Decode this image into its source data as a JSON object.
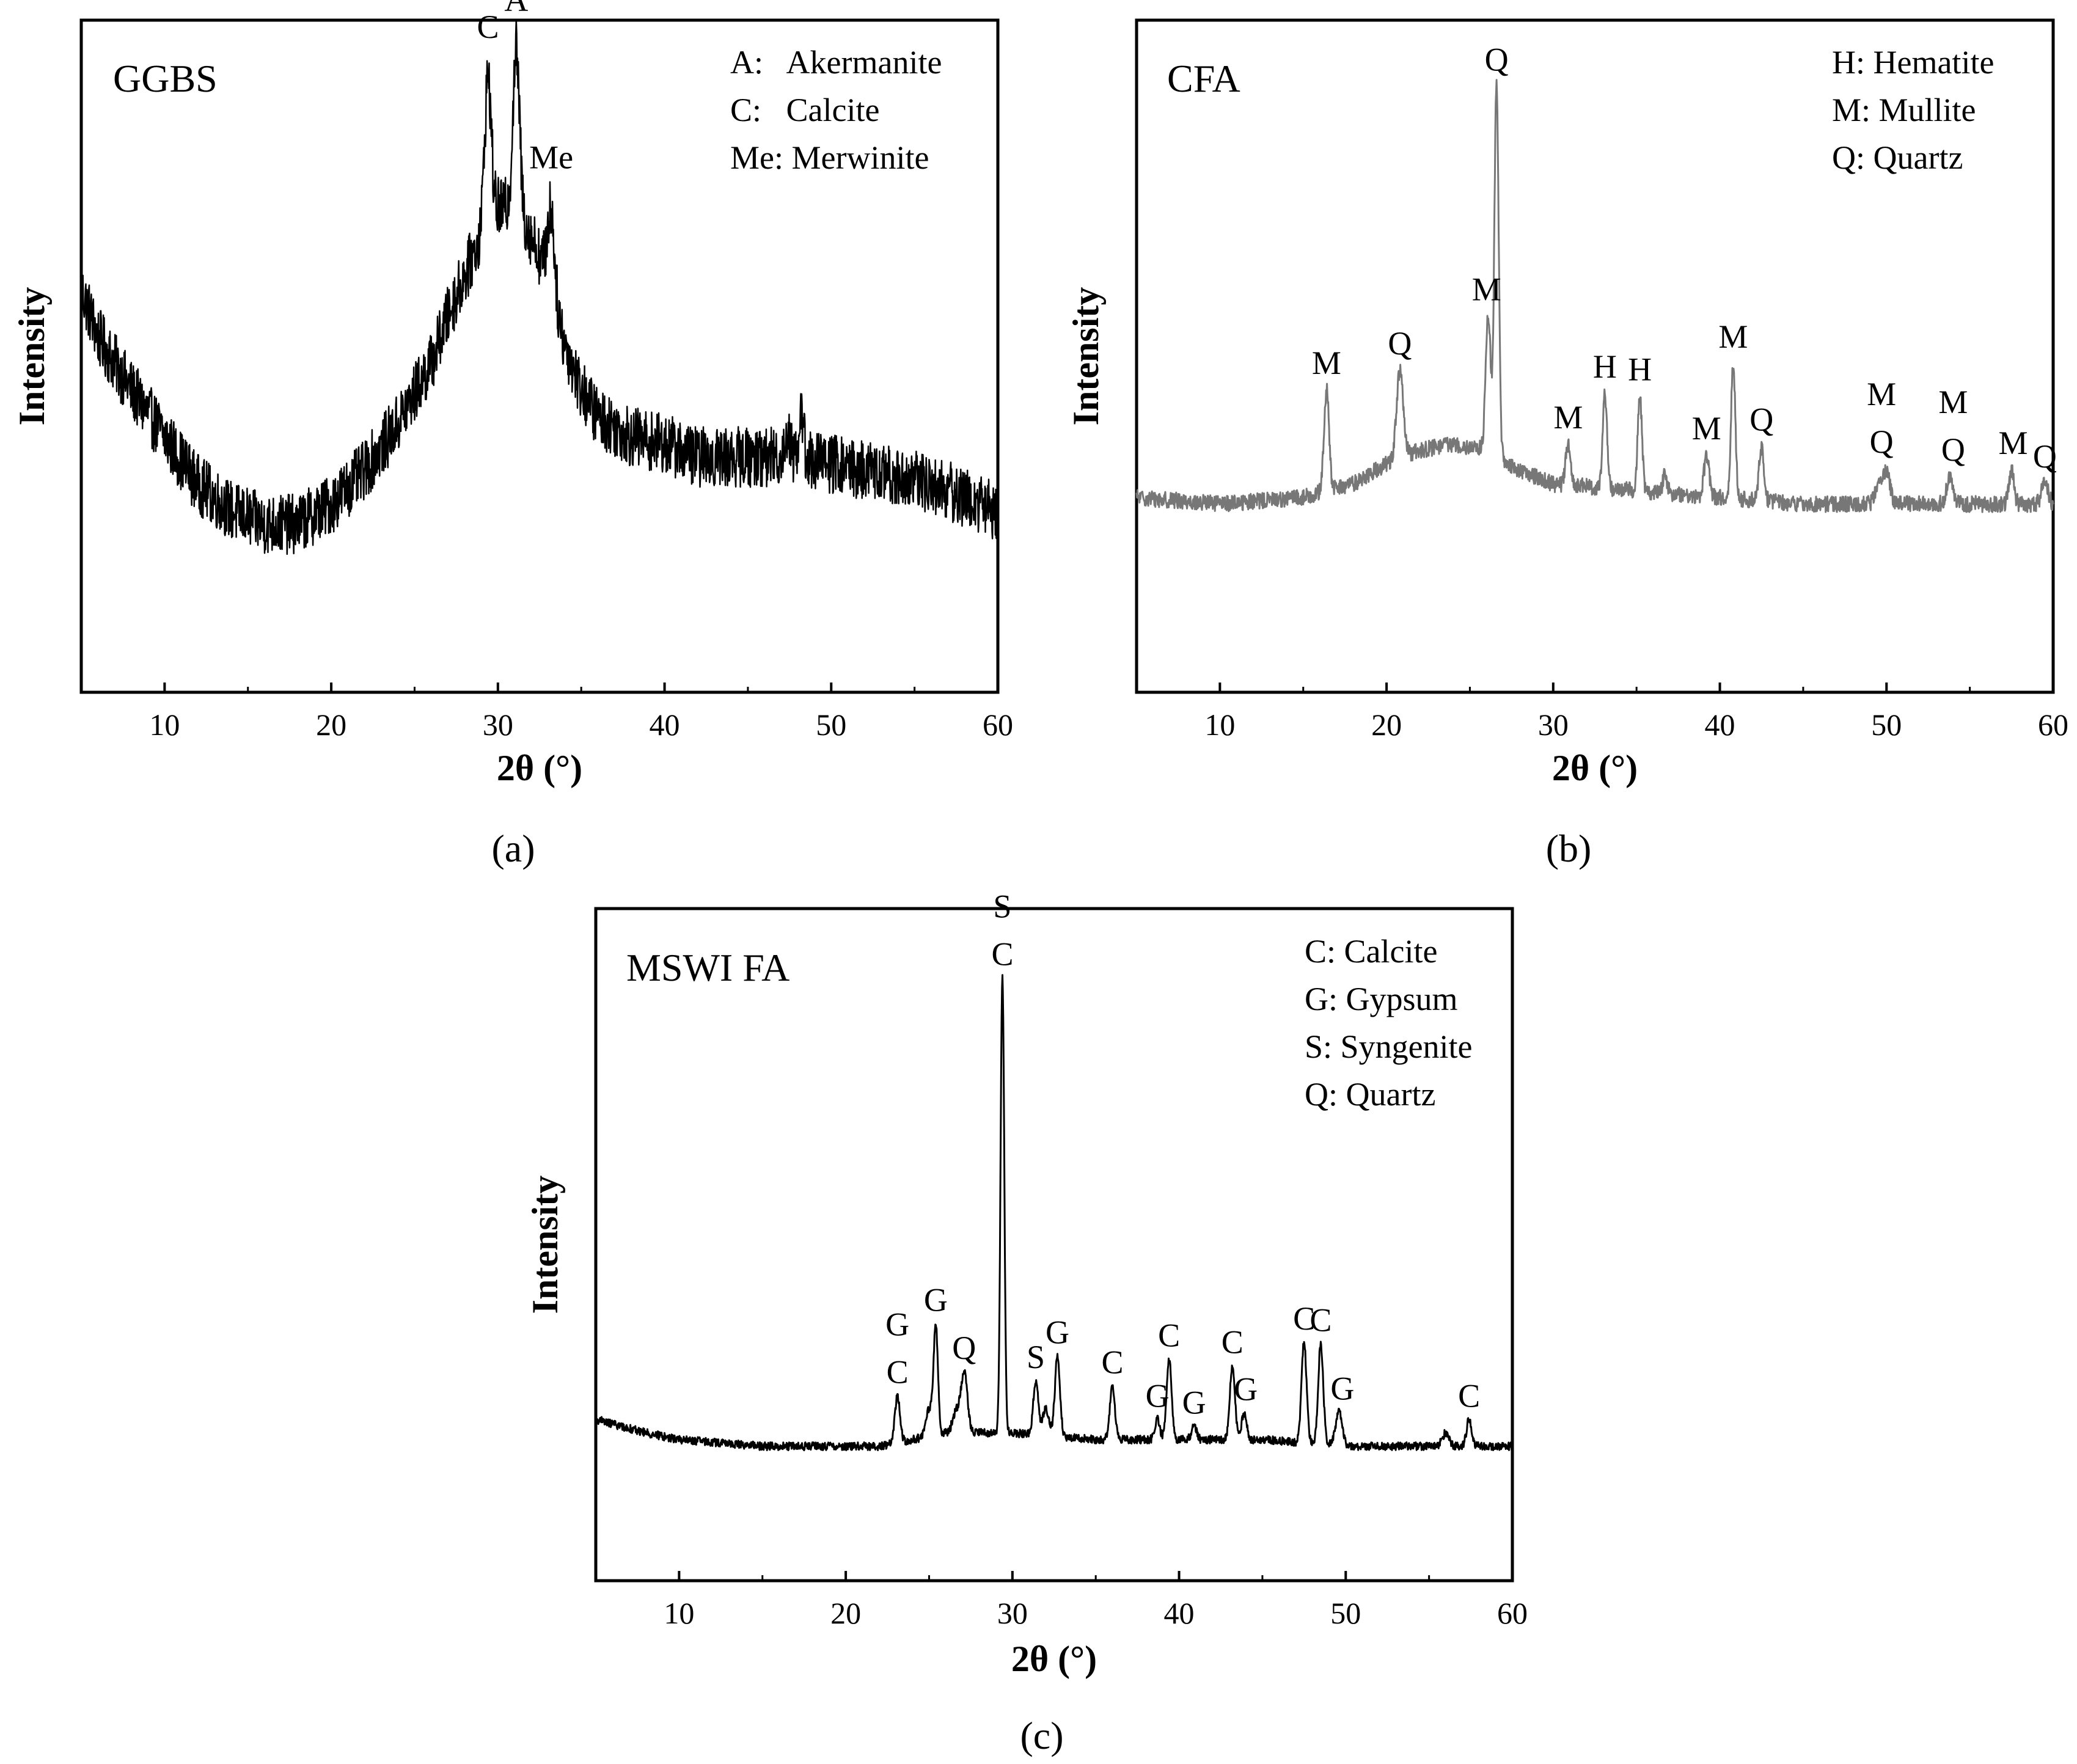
{
  "chart_data": [
    {
      "type": "line",
      "panel_id": "a",
      "caption": "(a)",
      "title": "GGBS",
      "xlabel": "2θ (°)",
      "ylabel": "Intensity",
      "xlim": [
        5,
        60
      ],
      "ylim": [
        0,
        100
      ],
      "xticks": [
        10,
        20,
        30,
        40,
        50,
        60
      ],
      "show_y_ticks": false,
      "line_color": "#000000",
      "noise": 4.5,
      "series": [
        {
          "name": "GGBS",
          "baseline": [
            [
              5,
              60
            ],
            [
              6,
              53
            ],
            [
              8,
              45
            ],
            [
              10,
              38
            ],
            [
              12,
              31
            ],
            [
              14,
              27
            ],
            [
              16,
              25
            ],
            [
              18,
              25
            ],
            [
              20,
              28
            ],
            [
              22,
              33
            ],
            [
              24,
              40
            ],
            [
              26,
              49
            ],
            [
              27,
              56
            ],
            [
              28,
              62
            ],
            [
              29,
              68
            ],
            [
              30,
              72
            ],
            [
              31,
              72
            ],
            [
              32,
              68
            ],
            [
              33,
              62
            ],
            [
              34,
              52
            ],
            [
              35,
              45
            ],
            [
              36,
              41
            ],
            [
              38,
              38
            ],
            [
              40,
              37
            ],
            [
              42,
              35
            ],
            [
              44,
              35
            ],
            [
              46,
              35
            ],
            [
              48,
              35
            ],
            [
              50,
              34
            ],
            [
              52,
              33
            ],
            [
              54,
              32
            ],
            [
              56,
              31
            ],
            [
              58,
              29
            ],
            [
              60,
              27
            ]
          ],
          "peaks": [
            [
              29.4,
              22,
              0.2
            ],
            [
              31.1,
              24,
              0.2
            ],
            [
              33.2,
              12,
              0.2
            ],
            [
              48.2,
              6,
              0.15
            ],
            [
              47.4,
              4,
              0.15
            ]
          ]
        }
      ],
      "legend": [
        "A:   Akermanite",
        "C:   Calcite",
        "Me: Merwinite"
      ],
      "annotations": [
        {
          "x": 29.4,
          "labels": [
            "C"
          ]
        },
        {
          "x": 31.1,
          "labels": [
            "A"
          ]
        },
        {
          "x": 33.2,
          "labels": [
            "Me"
          ]
        }
      ]
    },
    {
      "type": "line",
      "panel_id": "b",
      "caption": "(b)",
      "title": "CFA",
      "xlabel": "2θ (°)",
      "ylabel": "Intensity",
      "xlim": [
        5,
        60
      ],
      "ylim": [
        0,
        100
      ],
      "xticks": [
        10,
        20,
        30,
        40,
        50,
        60
      ],
      "show_y_ticks": false,
      "line_color": "#777777",
      "noise": 1.2,
      "series": [
        {
          "name": "CFA",
          "baseline": [
            [
              5,
              29
            ],
            [
              10,
              28
            ],
            [
              15,
              29
            ],
            [
              18,
              31
            ],
            [
              20,
              34
            ],
            [
              22,
              36
            ],
            [
              24,
              37
            ],
            [
              26,
              36
            ],
            [
              28,
              33
            ],
            [
              30,
              31
            ],
            [
              35,
              30
            ],
            [
              40,
              29
            ],
            [
              45,
              28
            ],
            [
              50,
              28
            ],
            [
              55,
              28
            ],
            [
              60,
              28
            ]
          ],
          "peaks": [
            [
              16.4,
              15,
              0.15
            ],
            [
              20.8,
              13,
              0.2
            ],
            [
              26.1,
              20,
              0.15
            ],
            [
              26.6,
              55,
              0.13
            ],
            [
              30.9,
              6,
              0.15
            ],
            [
              33.1,
              14,
              0.13
            ],
            [
              35.2,
              14,
              0.13
            ],
            [
              36.7,
              3,
              0.12
            ],
            [
              39.2,
              6,
              0.15
            ],
            [
              40.8,
              20,
              0.13
            ],
            [
              42.5,
              8,
              0.15
            ],
            [
              49.5,
              3,
              0.2
            ],
            [
              50.0,
              5,
              0.2
            ],
            [
              53.8,
              4,
              0.2
            ],
            [
              57.5,
              5,
              0.15
            ],
            [
              59.5,
              3,
              0.2
            ]
          ]
        }
      ],
      "legend": [
        "H: Hematite",
        "M: Mullite",
        "Q: Quartz"
      ],
      "annotations": [
        {
          "x": 16.4,
          "labels": [
            "M"
          ]
        },
        {
          "x": 20.8,
          "labels": [
            "Q"
          ]
        },
        {
          "x": 26.0,
          "labels": [
            "M"
          ]
        },
        {
          "x": 26.6,
          "labels": [
            "Q"
          ]
        },
        {
          "x": 30.9,
          "labels": [
            "M"
          ]
        },
        {
          "x": 33.1,
          "labels": [
            "H"
          ]
        },
        {
          "x": 35.2,
          "labels": [
            "H"
          ]
        },
        {
          "x": 39.2,
          "labels": [
            "M"
          ]
        },
        {
          "x": 40.8,
          "labels": [
            "M"
          ]
        },
        {
          "x": 42.5,
          "labels": [
            "Q"
          ]
        },
        {
          "x": 49.7,
          "labels": [
            "M",
            "Q"
          ]
        },
        {
          "x": 54.0,
          "labels": [
            "M",
            "Q"
          ]
        },
        {
          "x": 57.6,
          "labels": [
            "M"
          ]
        },
        {
          "x": 59.5,
          "labels": [
            "Q"
          ]
        }
      ]
    },
    {
      "type": "line",
      "panel_id": "c",
      "caption": "(c)",
      "title": "MSWI FA",
      "xlabel": "2θ (°)",
      "ylabel": "Intensity",
      "xlim": [
        5,
        60
      ],
      "ylim": [
        0,
        100
      ],
      "xticks": [
        10,
        20,
        30,
        40,
        50,
        60
      ],
      "show_y_ticks": false,
      "line_color": "#000000",
      "noise": 0.6,
      "series": [
        {
          "name": "MSWI FA",
          "baseline": [
            [
              5,
              24
            ],
            [
              8,
              22
            ],
            [
              10,
              21
            ],
            [
              15,
              20
            ],
            [
              20,
              20
            ],
            [
              22,
              20
            ],
            [
              24,
              21
            ],
            [
              26,
              22
            ],
            [
              28,
              22
            ],
            [
              30,
              22
            ],
            [
              35,
              21
            ],
            [
              40,
              21
            ],
            [
              45,
              21
            ],
            [
              50,
              20
            ],
            [
              55,
              20
            ],
            [
              60,
              20
            ]
          ],
          "peaks": [
            [
              23.1,
              7,
              0.15
            ],
            [
              25.0,
              4,
              0.2
            ],
            [
              25.4,
              16,
              0.13
            ],
            [
              26.6,
              3,
              0.2
            ],
            [
              27.1,
              9,
              0.2
            ],
            [
              29.4,
              68,
              0.11
            ],
            [
              31.4,
              8,
              0.15
            ],
            [
              32.0,
              4,
              0.2
            ],
            [
              32.7,
              12,
              0.15
            ],
            [
              36.0,
              8,
              0.15
            ],
            [
              38.7,
              3,
              0.15
            ],
            [
              39.4,
              12,
              0.15
            ],
            [
              40.9,
              2,
              0.15
            ],
            [
              43.2,
              11,
              0.15
            ],
            [
              43.9,
              4,
              0.15
            ],
            [
              47.5,
              15,
              0.15
            ],
            [
              48.5,
              15,
              0.15
            ],
            [
              49.6,
              5,
              0.2
            ],
            [
              56.0,
              2,
              0.2
            ],
            [
              57.4,
              4,
              0.15
            ]
          ]
        }
      ],
      "legend": [
        "C: Calcite",
        "G: Gypsum",
        "S: Syngenite",
        "Q: Quartz"
      ],
      "annotations": [
        {
          "x": 23.1,
          "labels": [
            "G",
            "C"
          ]
        },
        {
          "x": 25.4,
          "labels": [
            "G"
          ]
        },
        {
          "x": 27.1,
          "labels": [
            "Q"
          ]
        },
        {
          "x": 29.4,
          "labels": [
            "S",
            "C"
          ]
        },
        {
          "x": 31.4,
          "labels": [
            "S"
          ]
        },
        {
          "x": 32.7,
          "labels": [
            "G"
          ]
        },
        {
          "x": 36.0,
          "labels": [
            "C"
          ]
        },
        {
          "x": 38.7,
          "labels": [
            "G"
          ]
        },
        {
          "x": 39.4,
          "labels": [
            "C"
          ]
        },
        {
          "x": 40.9,
          "labels": [
            "G"
          ]
        },
        {
          "x": 43.2,
          "labels": [
            "C"
          ]
        },
        {
          "x": 44.0,
          "labels": [
            "G"
          ]
        },
        {
          "x": 47.5,
          "labels": [
            "C"
          ]
        },
        {
          "x": 48.5,
          "labels": [
            "C"
          ]
        },
        {
          "x": 49.8,
          "labels": [
            "G"
          ]
        },
        {
          "x": 57.4,
          "labels": [
            "C"
          ]
        }
      ]
    }
  ]
}
